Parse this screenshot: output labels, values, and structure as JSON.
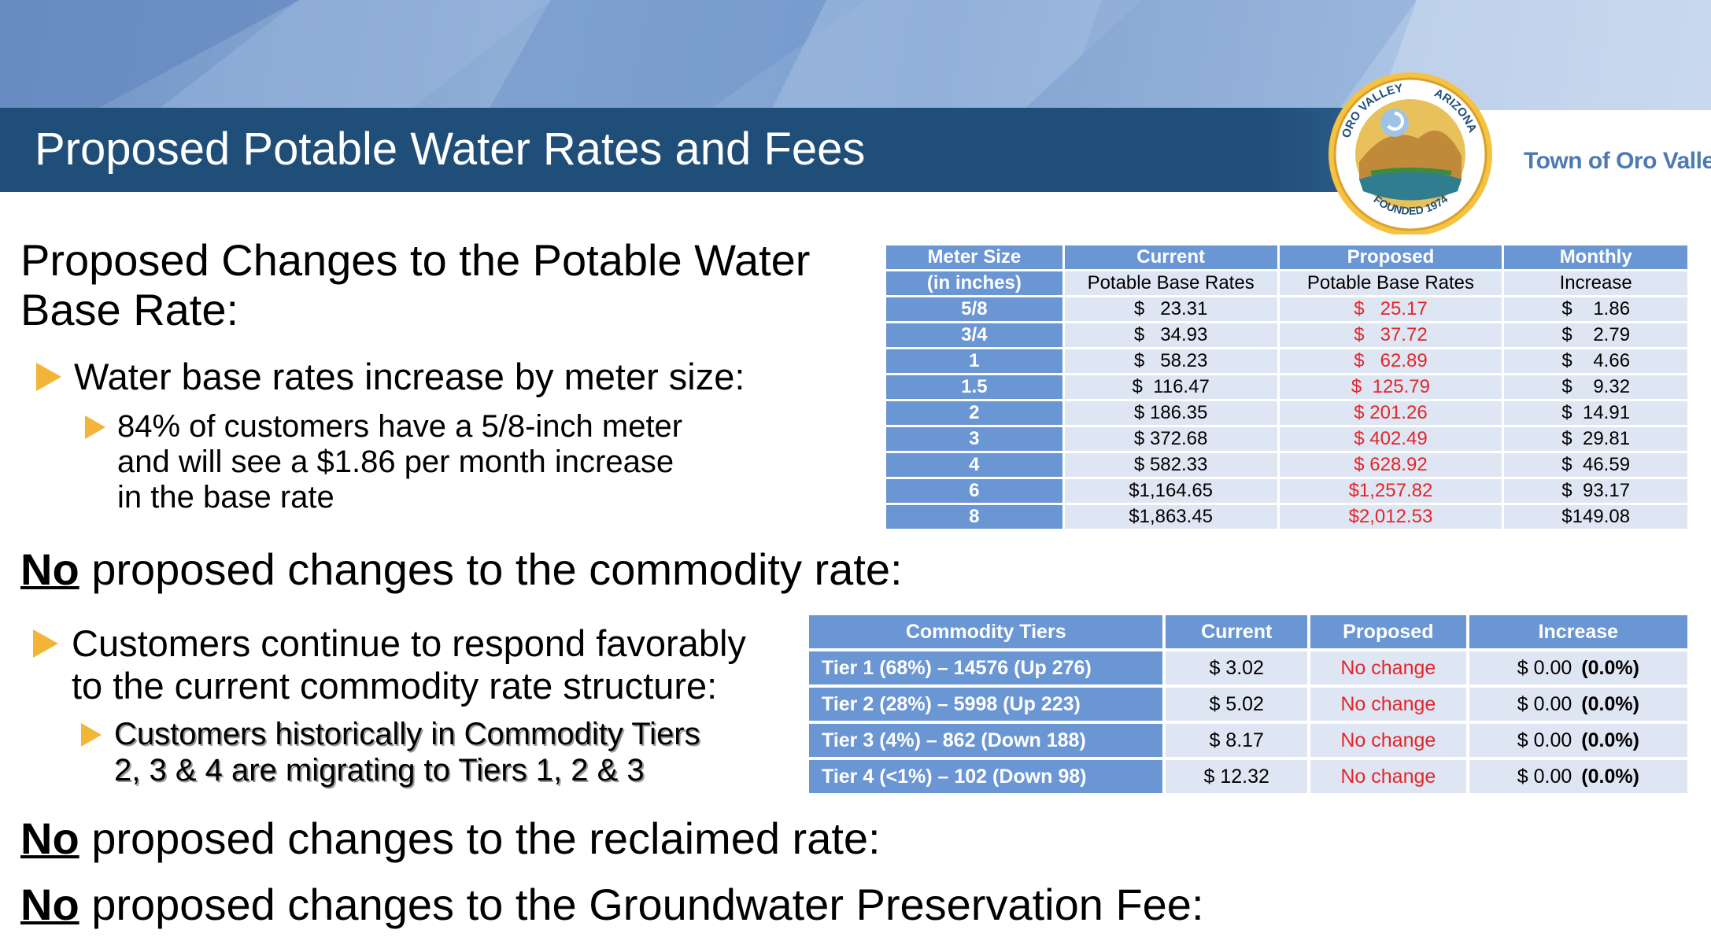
{
  "header": {
    "title": "Proposed Potable Water Rates and Fees",
    "town_name": "Town of Oro Valley",
    "logo": {
      "top_text": "ORO VALLEY",
      "right_text": "ARIZONA",
      "bottom_text": "FOUNDED 1974"
    }
  },
  "base_rate_section": {
    "heading_line1": "Proposed Changes to the Potable Water",
    "heading_line2": "Base Rate:",
    "bullet": "Water base rates increase by meter size:",
    "sub_bullet_lines": [
      "84% of customers have a 5/8-inch meter",
      "and will see a $1.86 per month increase",
      "in the base rate"
    ]
  },
  "base_rate_table": {
    "header_row": [
      "Meter Size",
      "Current",
      "Proposed",
      "Monthly"
    ],
    "sub_header_row": [
      "(in inches)",
      "Potable Base Rates",
      "Potable Base Rates",
      "Increase"
    ],
    "rows": [
      {
        "size": "5/8",
        "current": "$   23.31",
        "proposed": "$   25.17",
        "increase": "$    1.86"
      },
      {
        "size": "3/4",
        "current": "$   34.93",
        "proposed": "$   37.72",
        "increase": "$    2.79"
      },
      {
        "size": "1",
        "current": "$   58.23",
        "proposed": "$   62.89",
        "increase": "$    4.66"
      },
      {
        "size": "1.5",
        "current": "$  116.47",
        "proposed": "$  125.79",
        "increase": "$    9.32"
      },
      {
        "size": "2",
        "current": "$ 186.35",
        "proposed": "$ 201.26",
        "increase": "$  14.91"
      },
      {
        "size": "3",
        "current": "$ 372.68",
        "proposed": "$ 402.49",
        "increase": "$  29.81"
      },
      {
        "size": "4",
        "current": "$ 582.33",
        "proposed": "$ 628.92",
        "increase": "$  46.59"
      },
      {
        "size": "6",
        "current": "$1,164.65",
        "proposed": "$1,257.82",
        "increase": "$  93.17"
      },
      {
        "size": "8",
        "current": "$1,863.45",
        "proposed": "$2,012.53",
        "increase": "$149.08"
      }
    ]
  },
  "commodity_section": {
    "heading_no": "No",
    "heading_rest": " proposed changes to the commodity rate:",
    "bullet_lines": [
      "Customers continue to respond favorably",
      "to the current commodity rate structure:"
    ],
    "sub_bullet_lines": [
      "Customers historically in Commodity Tiers",
      "2, 3 & 4 are migrating to Tiers 1, 2 & 3"
    ]
  },
  "commodity_table": {
    "header_row": [
      "Commodity Tiers",
      "Current",
      "Proposed",
      "Increase"
    ],
    "rows": [
      {
        "tier": "Tier 1 (68%) – 14576 (Up 276)",
        "current": "$ 3.02",
        "proposed": "No change",
        "increase": "$ 0.00",
        "pct": "(0.0%)"
      },
      {
        "tier": "Tier 2 (28%) – 5998 (Up 223)",
        "current": "$ 5.02",
        "proposed": "No change",
        "increase": "$ 0.00",
        "pct": "(0.0%)"
      },
      {
        "tier": "Tier 3 (4%) – 862 (Down 188)",
        "current": "$ 8.17",
        "proposed": "No change",
        "increase": "$ 0.00",
        "pct": "(0.0%)"
      },
      {
        "tier": "Tier 4 (<1%) – 102 (Down 98)",
        "current": "$ 12.32",
        "proposed": "No change",
        "increase": "$ 0.00",
        "pct": "(0.0%)"
      }
    ]
  },
  "reclaimed_section": {
    "heading_no": "No",
    "heading_rest": " proposed changes to the reclaimed rate:"
  },
  "groundwater_section": {
    "heading_no": "No",
    "heading_rest": " proposed changes to the Groundwater Preservation Fee:"
  },
  "colors": {
    "title_bar": "#1f4e79",
    "table_header": "#6a96d4",
    "table_cell": "#dfe6f3",
    "proposed_red": "#e3262b",
    "bullet_arrow": "#f2b538",
    "town_name": "#4f79b3"
  }
}
